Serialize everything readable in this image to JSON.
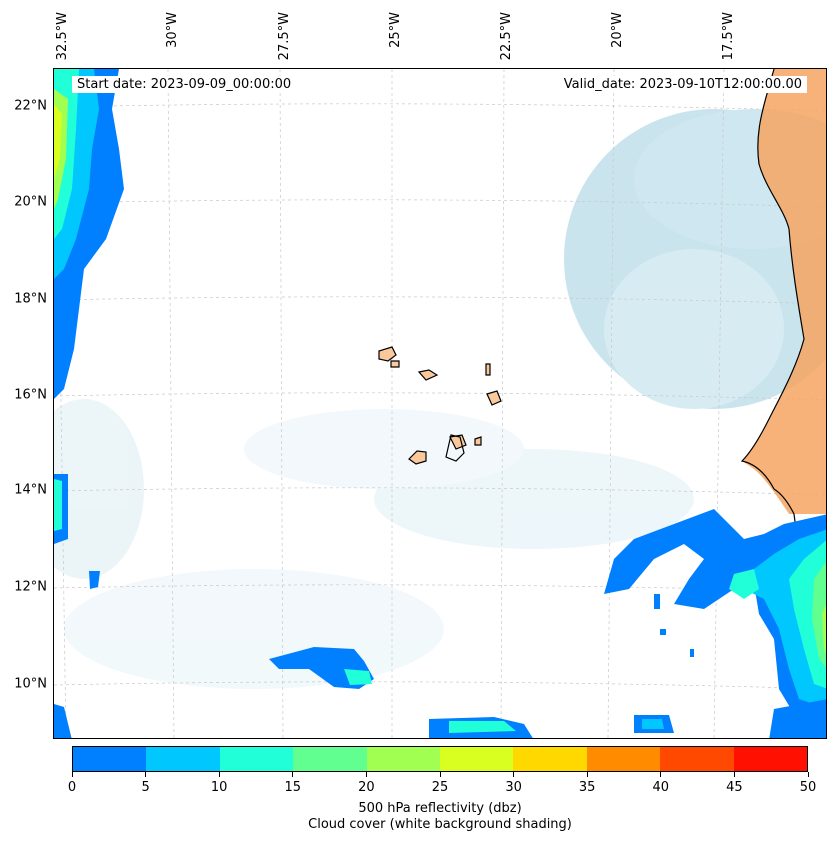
{
  "map": {
    "start_date": "Start date: 2023-09-09_00:00:00",
    "valid_date": "Valid_date: 2023-09-10T12:00:00.00",
    "lat_labels": [
      "22°N",
      "20°N",
      "18°N",
      "16°N",
      "14°N",
      "12°N",
      "10°N"
    ],
    "lon_labels": [
      "32.5°W",
      "30°W",
      "27.5°W",
      "25°W",
      "22.5°W",
      "20°W",
      "17.5°W"
    ],
    "land_color": "#f4a460",
    "cloud_color": "#b0d8e6"
  },
  "colorbar": {
    "ticks": [
      "0",
      "5",
      "10",
      "15",
      "20",
      "25",
      "30",
      "35",
      "40",
      "45",
      "50"
    ],
    "colors": [
      "#0080ff",
      "#00c8ff",
      "#20ffd8",
      "#60ff90",
      "#a0ff50",
      "#d8ff20",
      "#ffd800",
      "#ff8c00",
      "#ff4800",
      "#ff1000"
    ],
    "label_line1": "500 hPa reflectivity (dbz)",
    "label_line2": "Cloud cover (white background shading)"
  }
}
